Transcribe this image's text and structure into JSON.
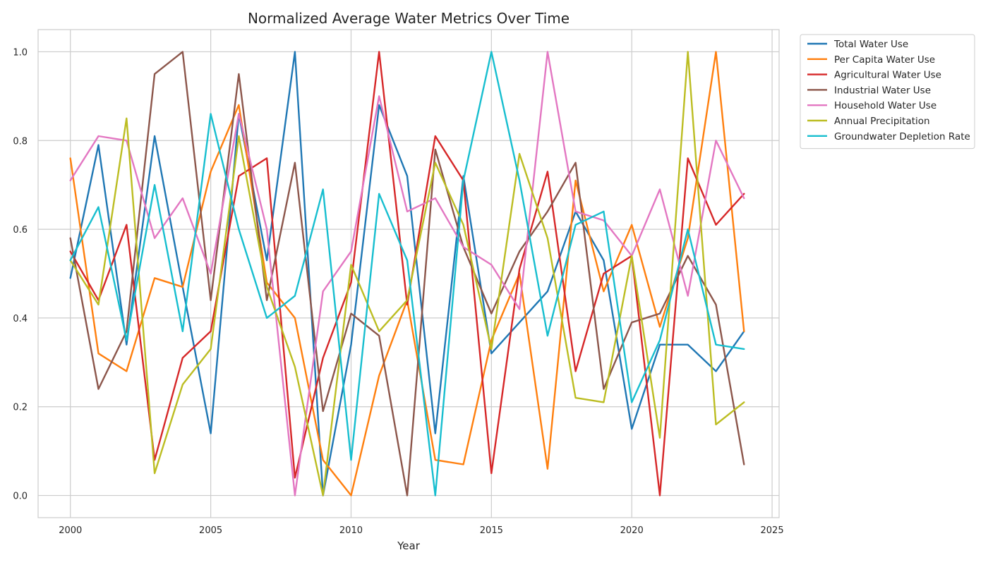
{
  "chart_data": {
    "type": "line",
    "title": "Normalized Average Water Metrics Over Time",
    "xlabel": "Year",
    "ylabel": "",
    "xlim": [
      1998.85,
      2025.25
    ],
    "ylim": [
      -0.05,
      1.05
    ],
    "x_ticks": [
      2000,
      2005,
      2010,
      2015,
      2020,
      2025
    ],
    "y_ticks": [
      "0.0",
      "0.2",
      "0.4",
      "0.6",
      "0.8",
      "1.0"
    ],
    "y_tick_values": [
      0.0,
      0.2,
      0.4,
      0.6,
      0.8,
      1.0
    ],
    "grid": true,
    "legend_position": "outside-top-right",
    "x": [
      2000,
      2001,
      2002,
      2003,
      2004,
      2005,
      2006,
      2007,
      2008,
      2009,
      2010,
      2011,
      2012,
      2013,
      2014,
      2015,
      2016,
      2017,
      2018,
      2019,
      2020,
      2021,
      2022,
      2023,
      2024
    ],
    "series": [
      {
        "name": "Total Water Use",
        "color": "#1f77b4",
        "values": [
          0.49,
          0.79,
          0.34,
          0.81,
          0.47,
          0.14,
          0.86,
          0.53,
          1.0,
          0.0,
          0.34,
          0.88,
          0.72,
          0.14,
          0.72,
          0.32,
          0.39,
          0.46,
          0.64,
          0.53,
          0.15,
          0.34,
          0.34,
          0.28,
          0.37
        ]
      },
      {
        "name": "Per Capita Water Use",
        "color": "#ff7f0e",
        "values": [
          0.76,
          0.32,
          0.28,
          0.49,
          0.47,
          0.73,
          0.88,
          0.48,
          0.4,
          0.08,
          0.0,
          0.27,
          0.44,
          0.08,
          0.07,
          0.35,
          0.5,
          0.06,
          0.71,
          0.46,
          0.61,
          0.38,
          0.58,
          1.0,
          0.37
        ]
      },
      {
        "name": "Agricultural Water Use",
        "color": "#d62728",
        "values": [
          0.55,
          0.44,
          0.61,
          0.08,
          0.31,
          0.37,
          0.72,
          0.76,
          0.04,
          0.31,
          0.48,
          1.0,
          0.43,
          0.81,
          0.71,
          0.05,
          0.51,
          0.73,
          0.28,
          0.5,
          0.54,
          0.0,
          0.76,
          0.61,
          0.68
        ]
      },
      {
        "name": "Industrial Water Use",
        "color": "#8c564b",
        "values": [
          0.58,
          0.24,
          0.37,
          0.95,
          1.0,
          0.44,
          0.95,
          0.44,
          0.75,
          0.19,
          0.41,
          0.36,
          0.0,
          0.78,
          0.56,
          0.41,
          0.55,
          0.64,
          0.75,
          0.24,
          0.39,
          0.41,
          0.54,
          0.43,
          0.07
        ]
      },
      {
        "name": "Household Water Use",
        "color": "#e377c2",
        "values": [
          0.71,
          0.81,
          0.8,
          0.58,
          0.67,
          0.5,
          0.86,
          0.6,
          0.0,
          0.46,
          0.55,
          0.9,
          0.64,
          0.67,
          0.56,
          0.52,
          0.42,
          1.0,
          0.64,
          0.62,
          0.54,
          0.69,
          0.45,
          0.8,
          0.67
        ]
      },
      {
        "name": "Annual Precipitation",
        "color": "#bcbd22",
        "values": [
          0.53,
          0.43,
          0.85,
          0.05,
          0.25,
          0.33,
          0.81,
          0.47,
          0.29,
          0.0,
          0.52,
          0.37,
          0.44,
          0.75,
          0.61,
          0.33,
          0.77,
          0.58,
          0.22,
          0.21,
          0.54,
          0.13,
          1.0,
          0.16,
          0.21
        ]
      },
      {
        "name": "Groundwater Depletion Rate",
        "color": "#17becf",
        "values": [
          0.53,
          0.65,
          0.35,
          0.7,
          0.37,
          0.86,
          0.6,
          0.4,
          0.45,
          0.69,
          0.08,
          0.68,
          0.53,
          0.0,
          0.71,
          1.0,
          0.71,
          0.36,
          0.61,
          0.64,
          0.21,
          0.35,
          0.6,
          0.34,
          0.33
        ]
      }
    ]
  }
}
